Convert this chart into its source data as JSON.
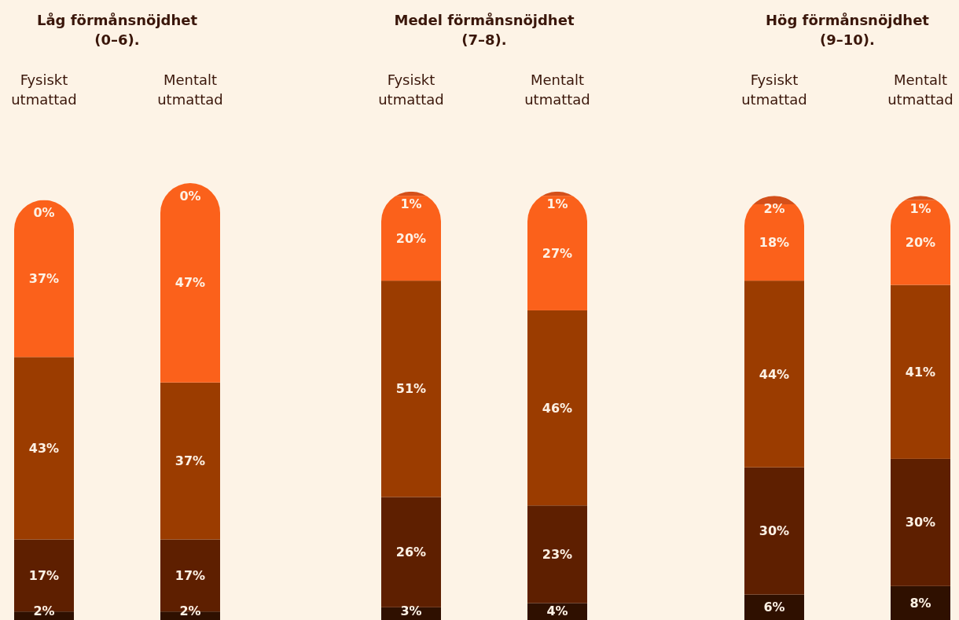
{
  "chart_data": [
    {
      "type": "bar",
      "title": "Låg förmånsnöjdhet\n(0–6).",
      "categories": [
        "Fysiskt\nutmattad",
        "Mentalt\nutmattad"
      ],
      "stacked": true,
      "series": [
        {
          "color": "#2f1000",
          "values": [
            2,
            2
          ],
          "value_labels": [
            "2%",
            "2%"
          ]
        },
        {
          "color": "#5e1f00",
          "values": [
            17,
            17
          ],
          "value_labels": [
            "17%",
            "17%"
          ]
        },
        {
          "color": "#9b3c00",
          "values": [
            43,
            37
          ],
          "value_labels": [
            "43%",
            "37%"
          ]
        },
        {
          "color": "#fb611b",
          "values": [
            37,
            47
          ],
          "value_labels": [
            "37%",
            "47%"
          ]
        },
        {
          "color": "#d4501a",
          "values": [
            0,
            0
          ],
          "value_labels": [
            "0%",
            "0%"
          ]
        }
      ]
    },
    {
      "type": "bar",
      "title": "Medel förmånsnöjdhet\n(7–8).",
      "categories": [
        "Fysiskt\nutmattad",
        "Mentalt\nutmattad"
      ],
      "stacked": true,
      "series": [
        {
          "color": "#2f1000",
          "values": [
            3,
            4
          ],
          "value_labels": [
            "3%",
            "4%"
          ]
        },
        {
          "color": "#5e1f00",
          "values": [
            26,
            23
          ],
          "value_labels": [
            "26%",
            "23%"
          ]
        },
        {
          "color": "#9b3c00",
          "values": [
            51,
            46
          ],
          "value_labels": [
            "51%",
            "46%"
          ]
        },
        {
          "color": "#fb611b",
          "values": [
            20,
            27
          ],
          "value_labels": [
            "20%",
            "27%"
          ]
        },
        {
          "color": "#d4501a",
          "values": [
            1,
            1
          ],
          "value_labels": [
            "1%",
            "1%"
          ]
        }
      ]
    },
    {
      "type": "bar",
      "title": "Hög förmånsnöjdhet\n(9–10).",
      "categories": [
        "Fysiskt\nutmattad",
        "Mentalt\nutmattad"
      ],
      "stacked": true,
      "series": [
        {
          "color": "#2f1000",
          "values": [
            6,
            8
          ],
          "value_labels": [
            "6%",
            "8%"
          ]
        },
        {
          "color": "#5e1f00",
          "values": [
            30,
            30
          ],
          "value_labels": [
            "30%",
            "30%"
          ]
        },
        {
          "color": "#9b3c00",
          "values": [
            44,
            41
          ],
          "value_labels": [
            "44%",
            "41%"
          ]
        },
        {
          "color": "#fb611b",
          "values": [
            18,
            20
          ],
          "value_labels": [
            "18%",
            "20%"
          ]
        },
        {
          "color": "#d4501a",
          "values": [
            2,
            1
          ],
          "value_labels": [
            "2%",
            "1%"
          ]
        }
      ]
    }
  ]
}
